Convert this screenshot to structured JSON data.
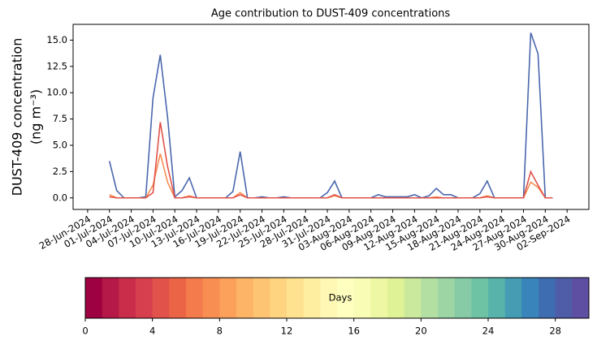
{
  "chart_data": {
    "type": "line",
    "title": "Age contribution to DUST-409 concentrations",
    "ylabel": [
      "DUST-409 concentration",
      "(ng m⁻³)"
    ],
    "x": [
      "2024-07-01",
      "2024-07-02",
      "2024-07-03",
      "2024-07-04",
      "2024-07-05",
      "2024-07-06",
      "2024-07-07",
      "2024-07-08",
      "2024-07-09",
      "2024-07-10",
      "2024-07-11",
      "2024-07-12",
      "2024-07-13",
      "2024-07-14",
      "2024-07-15",
      "2024-07-16",
      "2024-07-17",
      "2024-07-18",
      "2024-07-19",
      "2024-07-20",
      "2024-07-21",
      "2024-07-22",
      "2024-07-23",
      "2024-07-24",
      "2024-07-25",
      "2024-07-26",
      "2024-07-27",
      "2024-07-28",
      "2024-07-29",
      "2024-07-30",
      "2024-07-31",
      "2024-08-01",
      "2024-08-02",
      "2024-08-03",
      "2024-08-04",
      "2024-08-05",
      "2024-08-06",
      "2024-08-07",
      "2024-08-08",
      "2024-08-09",
      "2024-08-10",
      "2024-08-11",
      "2024-08-12",
      "2024-08-13",
      "2024-08-14",
      "2024-08-15",
      "2024-08-16",
      "2024-08-17",
      "2024-08-18",
      "2024-08-19",
      "2024-08-20",
      "2024-08-21",
      "2024-08-22",
      "2024-08-23",
      "2024-08-24",
      "2024-08-25",
      "2024-08-26",
      "2024-08-27",
      "2024-08-28",
      "2024-08-29",
      "2024-08-30",
      "2024-08-31"
    ],
    "series": [
      {
        "color": "#4a67ad",
        "values": [
          3.5,
          0.7,
          0,
          0,
          0,
          0.1,
          9.5,
          13.6,
          7.7,
          0.1,
          0.7,
          1.9,
          0,
          0,
          0,
          0,
          0,
          0.6,
          4.4,
          0,
          0,
          0.1,
          0,
          0,
          0.1,
          0,
          0,
          0,
          0,
          0,
          0.5,
          1.6,
          0,
          0,
          0,
          0,
          0,
          0.3,
          0.1,
          0.1,
          0.1,
          0.1,
          0.3,
          0,
          0.2,
          0.9,
          0.3,
          0.3,
          0,
          0,
          0,
          0.4,
          1.6,
          0,
          0,
          0,
          0,
          0,
          15.7,
          13.7,
          0,
          0
        ]
      },
      {
        "color": "#f88e52",
        "values": [
          0.3,
          0,
          0,
          0,
          0,
          0,
          1.2,
          4.2,
          1.5,
          0,
          0,
          0.2,
          0,
          0,
          0,
          0,
          0,
          0,
          0.5,
          0,
          0,
          0,
          0,
          0,
          0,
          0,
          0,
          0,
          0,
          0,
          0,
          0.2,
          0,
          0,
          0,
          0,
          0,
          0,
          0,
          0,
          0,
          0,
          0,
          0,
          0,
          0.1,
          0,
          0,
          0,
          0,
          0,
          0,
          0.2,
          0,
          0,
          0,
          0,
          0,
          1.5,
          1.0,
          0,
          0
        ]
      },
      {
        "color": "#e1524a",
        "values": [
          0.1,
          0,
          0,
          0,
          0,
          0,
          0.5,
          7.2,
          3.0,
          0,
          0,
          0.1,
          0,
          0,
          0,
          0,
          0,
          0,
          0.3,
          0,
          0,
          0,
          0,
          0,
          0,
          0,
          0,
          0,
          0,
          0,
          0,
          0.3,
          0,
          0,
          0,
          0,
          0,
          0,
          0,
          0,
          0,
          0,
          0,
          0,
          0,
          0,
          0,
          0,
          0,
          0,
          0,
          0,
          0.1,
          0,
          0,
          0,
          0,
          0,
          2.5,
          1.2,
          0,
          0
        ]
      }
    ],
    "xlim": [
      "2024-06-26",
      "2024-09-05"
    ],
    "xticks": [
      {
        "value": "2024-06-28",
        "label": "28-Jun-2024"
      },
      {
        "value": "2024-07-01",
        "label": "01-Jul-2024"
      },
      {
        "value": "2024-07-04",
        "label": "04-Jul-2024"
      },
      {
        "value": "2024-07-07",
        "label": "07-Jul-2024"
      },
      {
        "value": "2024-07-10",
        "label": "10-Jul-2024"
      },
      {
        "value": "2024-07-13",
        "label": "13-Jul-2024"
      },
      {
        "value": "2024-07-16",
        "label": "16-Jul-2024"
      },
      {
        "value": "2024-07-19",
        "label": "19-Jul-2024"
      },
      {
        "value": "2024-07-22",
        "label": "22-Jul-2024"
      },
      {
        "value": "2024-07-25",
        "label": "25-Jul-2024"
      },
      {
        "value": "2024-07-28",
        "label": "28-Jul-2024"
      },
      {
        "value": "2024-07-31",
        "label": "31-Jul-2024"
      },
      {
        "value": "2024-08-03",
        "label": "03-Aug-2024"
      },
      {
        "value": "2024-08-06",
        "label": "06-Aug-2024"
      },
      {
        "value": "2024-08-09",
        "label": "09-Aug-2024"
      },
      {
        "value": "2024-08-12",
        "label": "12-Aug-2024"
      },
      {
        "value": "2024-08-15",
        "label": "15-Aug-2024"
      },
      {
        "value": "2024-08-18",
        "label": "18-Aug-2024"
      },
      {
        "value": "2024-08-21",
        "label": "21-Aug-2024"
      },
      {
        "value": "2024-08-24",
        "label": "24-Aug-2024"
      },
      {
        "value": "2024-08-27",
        "label": "27-Aug-2024"
      },
      {
        "value": "2024-08-30",
        "label": "30-Aug-2024"
      },
      {
        "value": "2024-09-02",
        "label": "02-Sep-2024"
      }
    ],
    "ylim": [
      -1.1,
      16.5
    ],
    "yticks": [
      {
        "value": 0,
        "label": "0.0"
      },
      2.5,
      {
        "value": 5,
        "label": "5.0"
      },
      7.5,
      {
        "value": 10,
        "label": "10.0"
      },
      12.5,
      {
        "value": 15,
        "label": "15.0"
      }
    ],
    "colorbar": {
      "label": "Days",
      "lim": [
        0,
        30
      ],
      "ticks": [
        0,
        4,
        8,
        12,
        16,
        20,
        24,
        28
      ],
      "colors": [
        "#9e0142",
        "#b41947",
        "#c92d4a",
        "#d6404e",
        "#e1524a",
        "#ec6446",
        "#f47b4b",
        "#f88e52",
        "#fba15c",
        "#fdb466",
        "#fdc473",
        "#fed481",
        "#fee290",
        "#feee9f",
        "#fff8b4",
        "#ffffbf",
        "#f8fcb4",
        "#eef8a4",
        "#e0f296",
        "#cbe99d",
        "#b4dfa2",
        "#9dd5a4",
        "#86cba5",
        "#6ec3a5",
        "#58b4aa",
        "#459cb3",
        "#3984bb",
        "#3f6db1",
        "#4f5ca8",
        "#5e4fa2"
      ]
    }
  }
}
